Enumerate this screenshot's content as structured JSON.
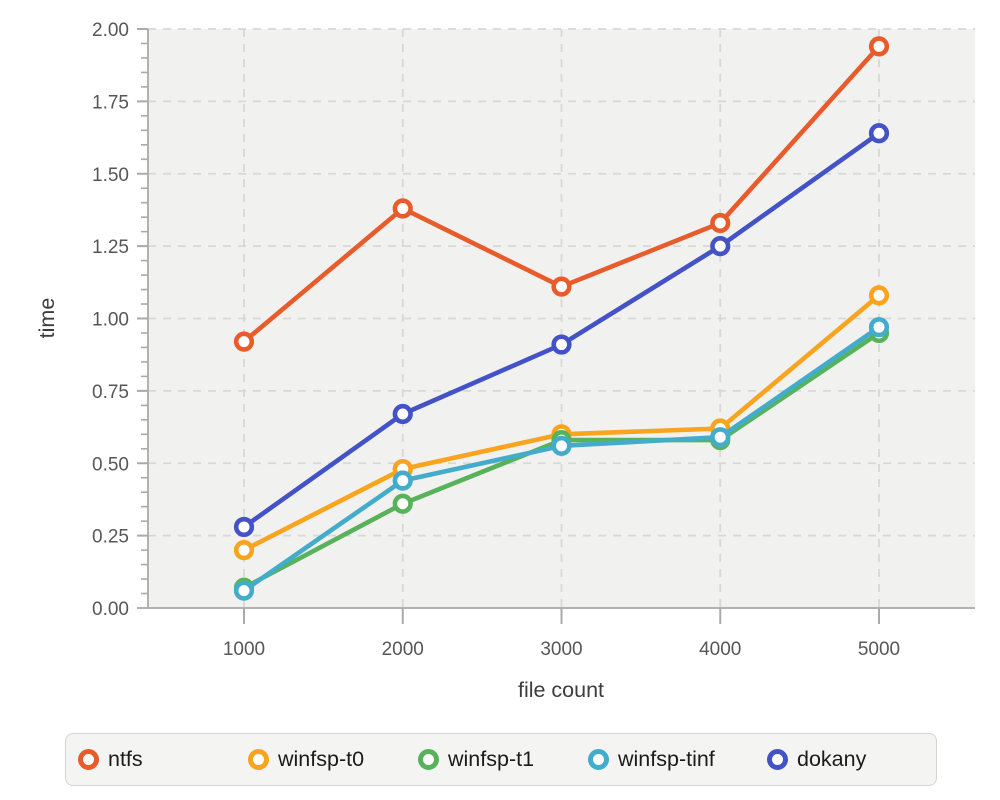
{
  "chart_data": {
    "type": "line",
    "title": "",
    "xlabel": "file count",
    "ylabel": "time",
    "x": [
      1000,
      2000,
      3000,
      4000,
      5000
    ],
    "x_tick_labels": [
      "1000",
      "2000",
      "3000",
      "4000",
      "5000"
    ],
    "y_tick_labels": [
      "0.00",
      "0.25",
      "0.50",
      "0.75",
      "1.00",
      "1.25",
      "1.50",
      "1.75",
      "2.00"
    ],
    "ylim": [
      0,
      2.0
    ],
    "y_major_step": 0.25,
    "y_minor_step": 0.05,
    "grid": "dashed",
    "legend_position": "bottom",
    "series": [
      {
        "name": "ntfs",
        "color": "#e85c2c",
        "values": [
          0.92,
          1.38,
          1.11,
          1.33,
          1.94
        ]
      },
      {
        "name": "winfsp-t0",
        "color": "#f8a41e",
        "values": [
          0.2,
          0.48,
          0.6,
          0.62,
          1.08
        ]
      },
      {
        "name": "winfsp-t1",
        "color": "#58b25a",
        "values": [
          0.07,
          0.36,
          0.58,
          0.58,
          0.95
        ]
      },
      {
        "name": "winfsp-tinf",
        "color": "#43accb",
        "values": [
          0.06,
          0.44,
          0.56,
          0.59,
          0.97
        ]
      },
      {
        "name": "dokany",
        "color": "#4452c7",
        "values": [
          0.28,
          0.67,
          0.91,
          1.25,
          1.64
        ]
      }
    ]
  },
  "style": {
    "plot_bg": "#f1f1ef",
    "grid_color": "#d8d8d8",
    "axis_color": "#b2b2b2",
    "tick_color": "#aaaaaa",
    "marker_fill": "#ffffff"
  }
}
